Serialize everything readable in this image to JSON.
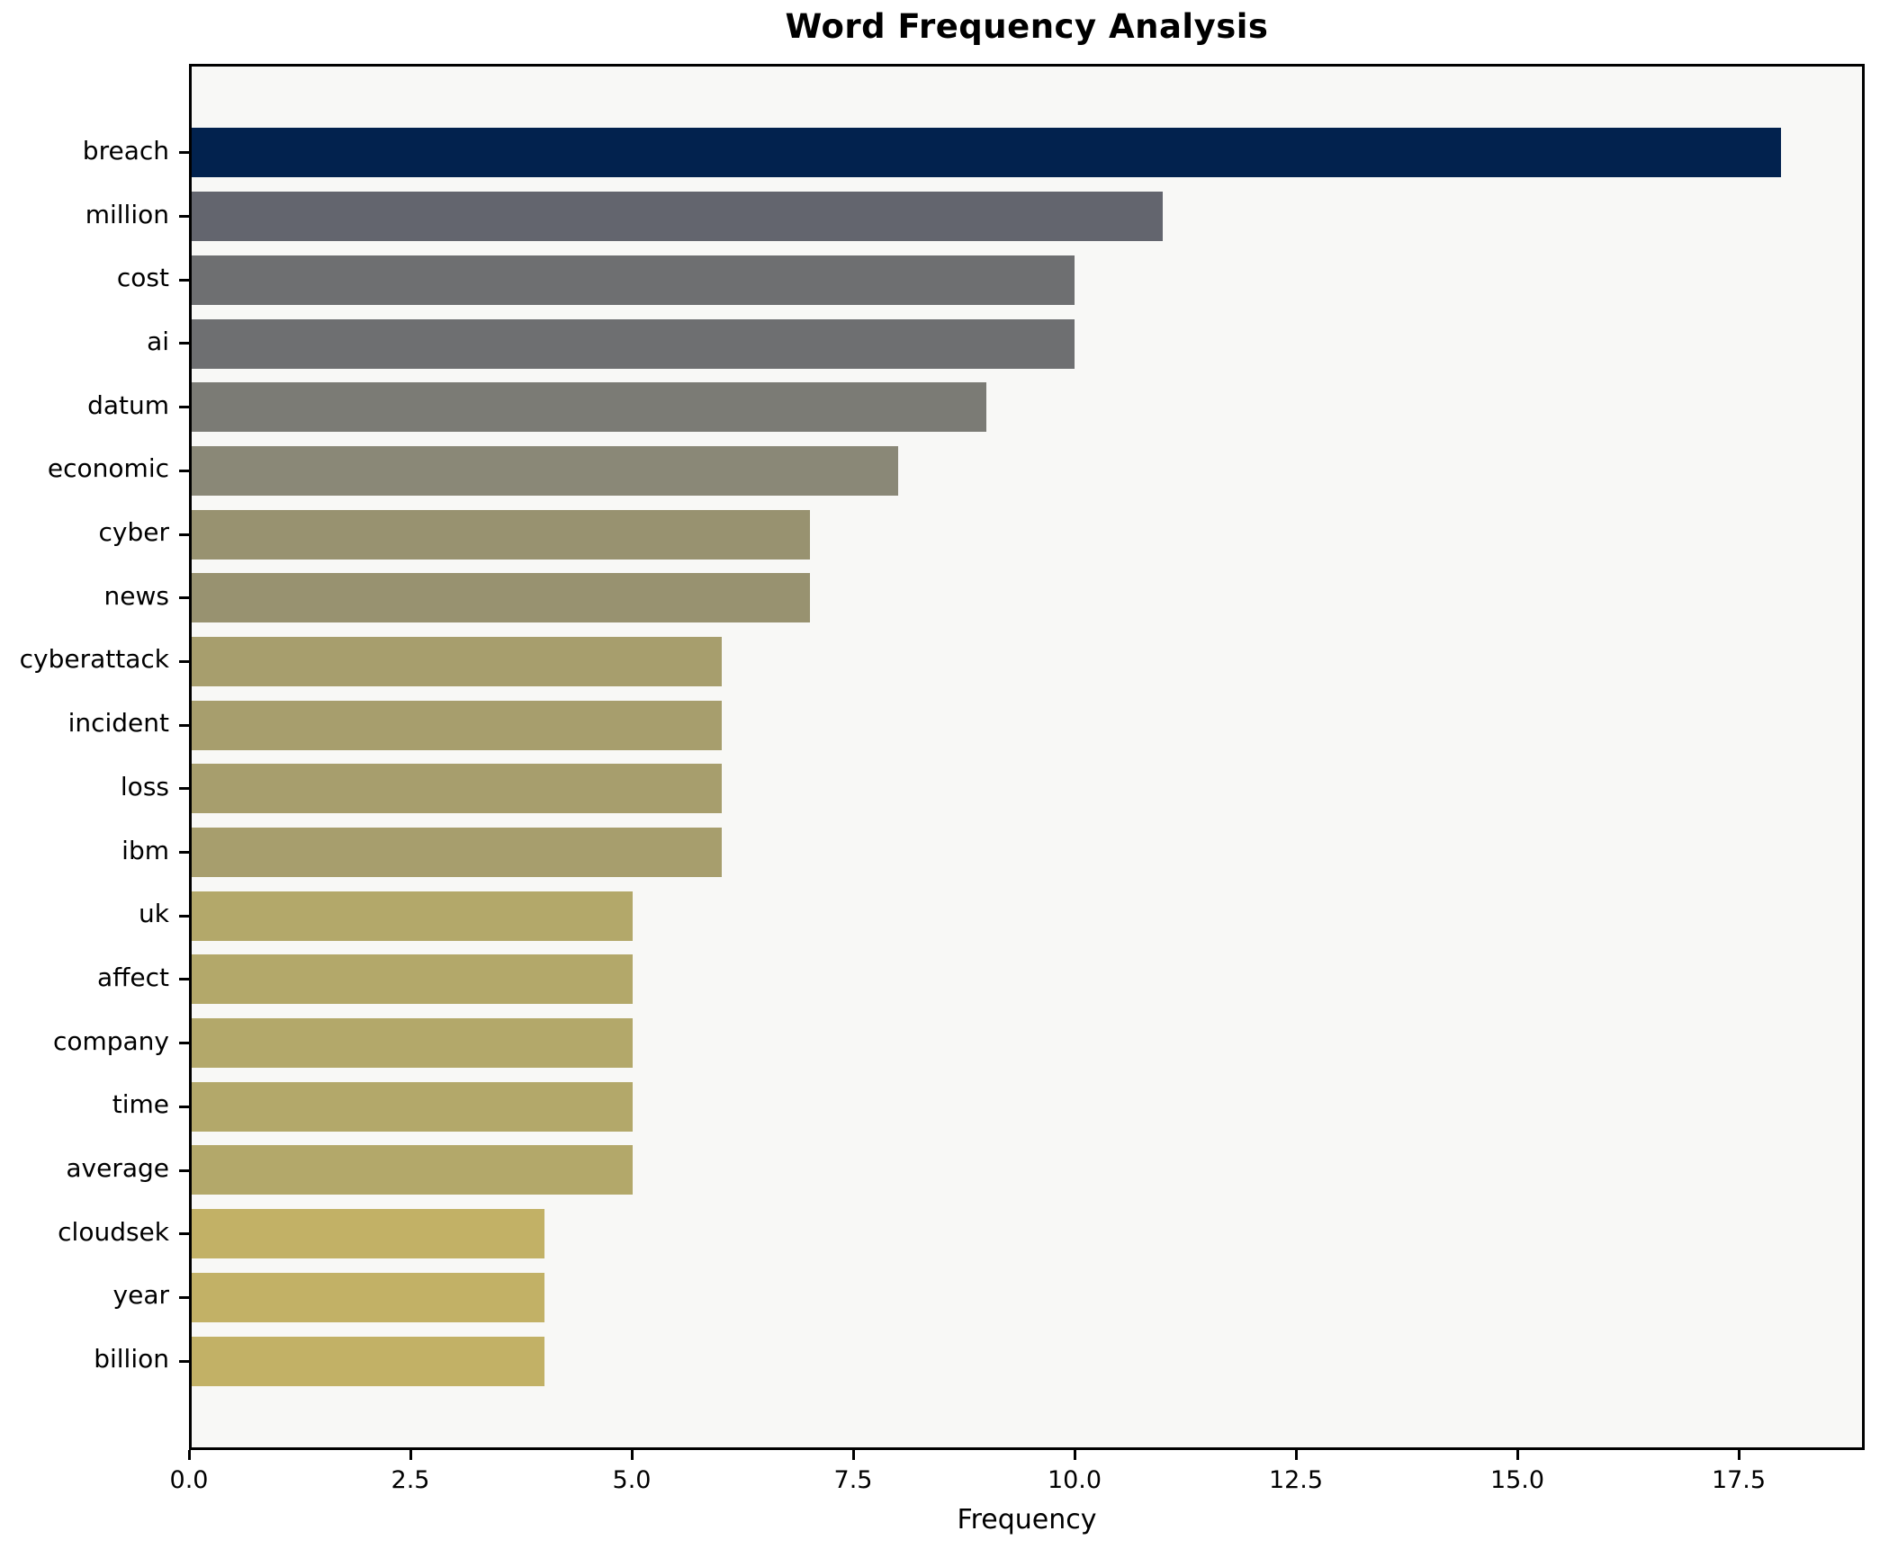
{
  "chart_data": {
    "type": "bar",
    "orientation": "horizontal",
    "title": "Word Frequency Analysis",
    "xlabel": "Frequency",
    "ylabel": "",
    "categories": [
      "breach",
      "million",
      "cost",
      "ai",
      "datum",
      "economic",
      "cyber",
      "news",
      "cyberattack",
      "incident",
      "loss",
      "ibm",
      "uk",
      "affect",
      "company",
      "time",
      "average",
      "cloudsek",
      "year",
      "billion"
    ],
    "values": [
      18,
      11,
      10,
      10,
      9,
      8,
      7,
      7,
      6,
      6,
      6,
      6,
      5,
      5,
      5,
      5,
      5,
      4,
      4,
      4
    ],
    "bar_colors": [
      "#02224e",
      "#63656e",
      "#6e6f71",
      "#6e6f71",
      "#7b7b75",
      "#8a8877",
      "#989270",
      "#989270",
      "#a79e6d",
      "#a79e6d",
      "#a79e6d",
      "#a79e6d",
      "#b3a86a",
      "#b3a86a",
      "#b3a86a",
      "#b3a86a",
      "#b3a86a",
      "#c2b166",
      "#c2b166",
      "#c2b166"
    ],
    "xlim": [
      0,
      18.92
    ],
    "xticks": [
      0,
      2.5,
      5,
      7.5,
      10,
      12.5,
      15,
      17.5
    ],
    "xtick_labels": [
      "0.0",
      "2.5",
      "5.0",
      "7.5",
      "10.0",
      "12.5",
      "15.0",
      "17.5"
    ],
    "grid": false,
    "legend": null,
    "colors": {
      "plot_background": "#f8f8f6",
      "figure_background": "#ffffff",
      "spine": "#000000",
      "text": "#000000",
      "max_bar": "#02224e",
      "min_bar": "#c2b166"
    }
  }
}
